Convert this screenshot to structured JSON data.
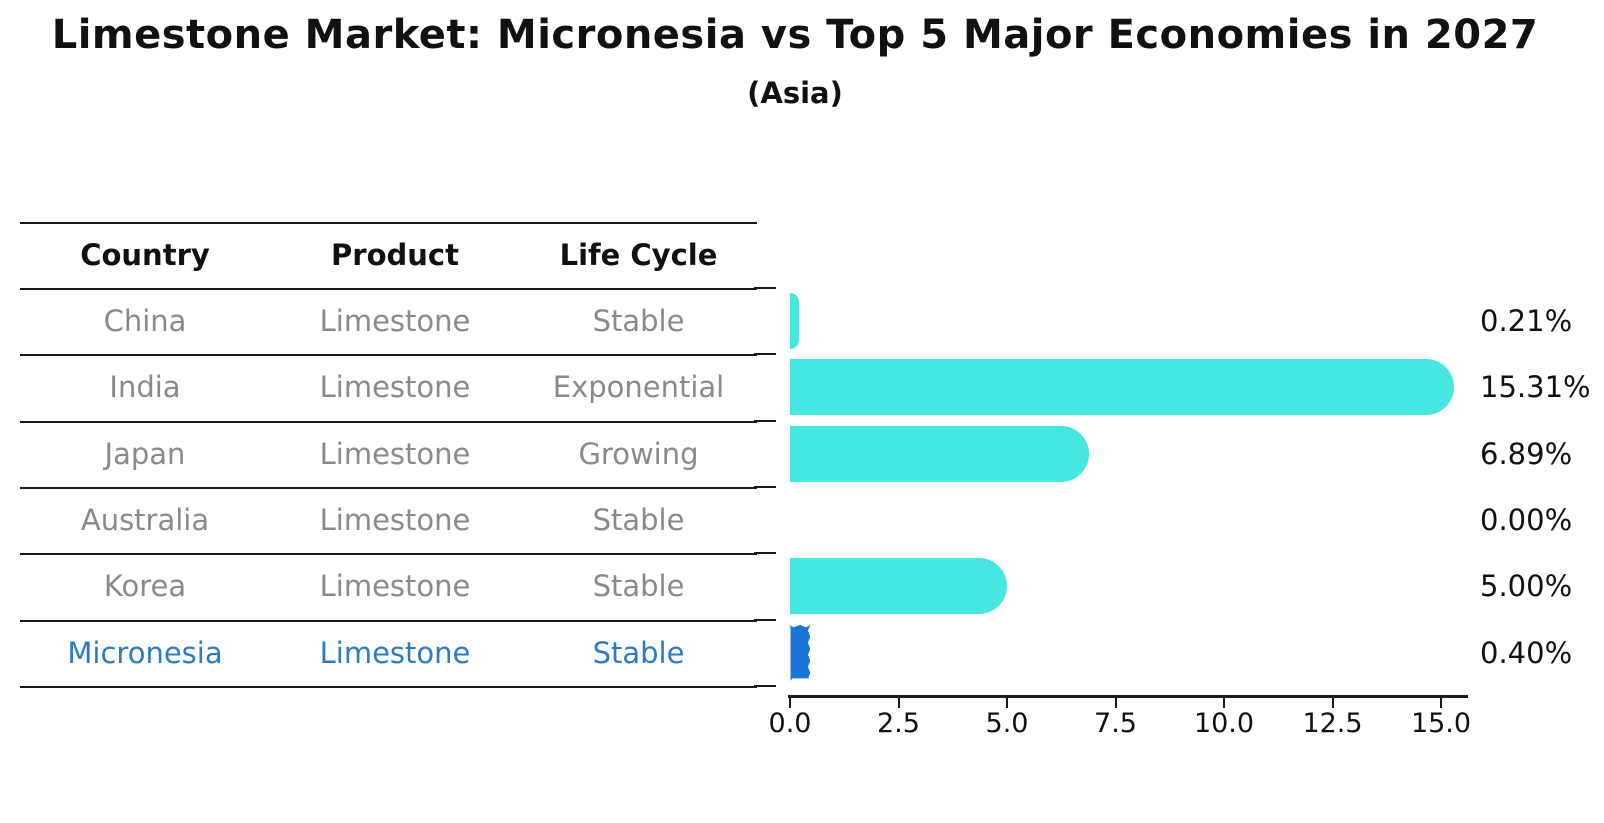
{
  "title": "Limestone Market: Micronesia vs Top 5 Major Economies in 2027",
  "subtitle": "(Asia)",
  "table": {
    "headers": [
      "Country",
      "Product",
      "Life Cycle"
    ]
  },
  "rows": [
    {
      "country": "China",
      "product": "Limestone",
      "life_cycle": "Stable",
      "value": 0.21,
      "value_label": "0.21%",
      "highlight": false
    },
    {
      "country": "India",
      "product": "Limestone",
      "life_cycle": "Exponential",
      "value": 15.31,
      "value_label": "15.31%",
      "highlight": false
    },
    {
      "country": "Japan",
      "product": "Limestone",
      "life_cycle": "Growing",
      "value": 6.89,
      "value_label": "6.89%",
      "highlight": false
    },
    {
      "country": "Australia",
      "product": "Limestone",
      "life_cycle": "Stable",
      "value": 0.0,
      "value_label": "0.00%",
      "highlight": false
    },
    {
      "country": "Korea",
      "product": "Limestone",
      "life_cycle": "Stable",
      "value": 5.0,
      "value_label": "5.00%",
      "highlight": false
    },
    {
      "country": "Micronesia",
      "product": "Limestone",
      "life_cycle": "Stable",
      "value": 0.4,
      "value_label": "0.40%",
      "highlight": true
    }
  ],
  "chart_data": {
    "type": "bar",
    "orientation": "horizontal",
    "title": "Limestone Market: Micronesia vs Top 5 Major Economies in 2027",
    "subtitle": "(Asia)",
    "categories": [
      "China",
      "India",
      "Japan",
      "Australia",
      "Korea",
      "Micronesia"
    ],
    "values": [
      0.21,
      15.31,
      6.89,
      0.0,
      5.0,
      0.4
    ],
    "value_labels": [
      "0.21%",
      "15.31%",
      "6.89%",
      "0.00%",
      "5.00%",
      "0.40%"
    ],
    "x_tick_labels": [
      "0.0",
      "2.5",
      "5.0",
      "7.5",
      "10.0",
      "12.5",
      "15.0"
    ],
    "x_ticks": [
      0.0,
      2.5,
      5.0,
      7.5,
      10.0,
      12.5,
      15.0
    ],
    "xlim": [
      0,
      15.6
    ],
    "xlabel": "",
    "ylabel": "",
    "grid": false,
    "legend": null,
    "highlight_category": "Micronesia"
  },
  "colors": {
    "bar_cyan": "#47e7e1",
    "bar_highlight_blue": "#1b75d9",
    "highlight_text_blue": "#2f7bc3",
    "row_text_gray": "#8a8a8a",
    "header_text": "#111111",
    "axis_line": "#1a1a1a",
    "background": "#ffffff"
  }
}
